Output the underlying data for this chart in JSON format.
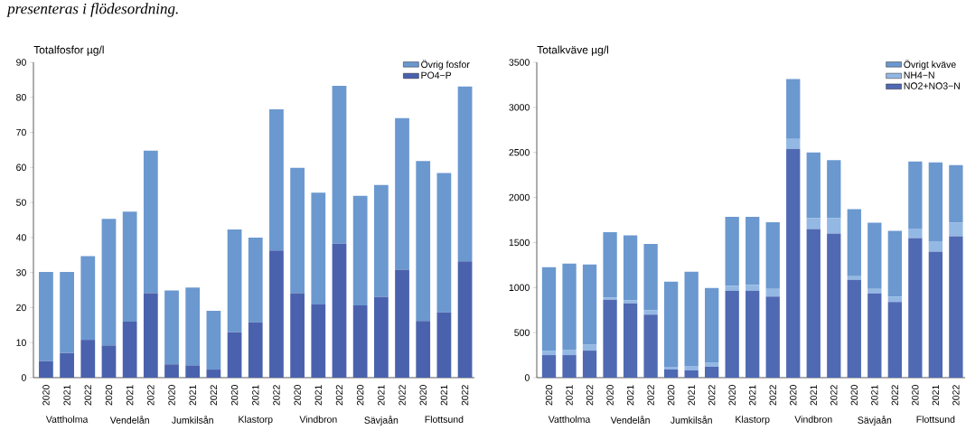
{
  "chart_data": [
    {
      "type": "bar",
      "stacked": true,
      "title": "presenteras i flödesordning.",
      "ylabel": "Totalfosfor µg/l",
      "categories": [
        "2020",
        "2021",
        "2022",
        "2020",
        "2021",
        "2022",
        "2020",
        "2021",
        "2022",
        "2020",
        "2021",
        "2022",
        "2020",
        "2021",
        "2022",
        "2020",
        "2021",
        "2022",
        "2020",
        "2021",
        "2022"
      ],
      "annotations": [
        "Vattholma",
        "Vendelån",
        "Jumkilsån",
        "Klastorp",
        "Vindbron",
        "Sävjaån",
        "Flottsund"
      ],
      "ylim": [
        0,
        90
      ],
      "yticks": [
        0,
        10,
        20,
        30,
        40,
        50,
        60,
        70,
        80,
        90
      ],
      "legend": "top right",
      "series": [
        {
          "name": "PO4−P",
          "color": "#4a62ad",
          "values": [
            4.7,
            7.0,
            10.8,
            9.2,
            16.0,
            24.1,
            3.8,
            3.5,
            2.3,
            13.0,
            15.8,
            36.3,
            24.1,
            20.9,
            38.2,
            20.6,
            23.0,
            30.8,
            16.2,
            18.6,
            33.2
          ]
        },
        {
          "name": "Övrig fosfor",
          "color": "#6b98cf",
          "values": [
            25.5,
            23.2,
            23.9,
            36.1,
            31.4,
            40.7,
            21.1,
            22.2,
            16.8,
            29.3,
            24.2,
            40.3,
            35.8,
            31.9,
            45.1,
            31.3,
            32.0,
            43.3,
            45.6,
            39.8,
            49.9
          ]
        }
      ]
    },
    {
      "type": "bar",
      "stacked": true,
      "ylabel": "Totalkväve µg/l",
      "categories": [
        "2020",
        "2021",
        "2022",
        "2020",
        "2021",
        "2022",
        "2020",
        "2021",
        "2022",
        "2020",
        "2021",
        "2022",
        "2020",
        "2021",
        "2022",
        "2020",
        "2021",
        "2022",
        "2020",
        "2021",
        "2022"
      ],
      "annotations": [
        "Vattholma",
        "Vendelån",
        "Jumkilsån",
        "Klastorp",
        "Vindbron",
        "Sävjaån",
        "Flottsund"
      ],
      "ylim": [
        0,
        3500
      ],
      "yticks": [
        0,
        500,
        1000,
        1500,
        2000,
        2500,
        3000,
        3500
      ],
      "legend": "top right",
      "series": [
        {
          "name": "NO2+NO3−N",
          "color": "#4f69b3",
          "values": [
            250,
            250,
            300,
            865,
            825,
            700,
            90,
            80,
            120,
            965,
            965,
            900,
            2540,
            1650,
            1600,
            1085,
            935,
            840,
            1550,
            1400,
            1570
          ]
        },
        {
          "name": "NH4−N",
          "color": "#93b8e3",
          "values": [
            50,
            60,
            70,
            25,
            35,
            50,
            30,
            50,
            50,
            55,
            65,
            85,
            110,
            120,
            170,
            40,
            50,
            60,
            105,
            115,
            150
          ]
        },
        {
          "name": "Övrigt kväve",
          "color": "#6b98cf",
          "values": [
            925,
            955,
            885,
            725,
            720,
            735,
            945,
            1045,
            825,
            765,
            755,
            740,
            665,
            730,
            645,
            745,
            735,
            730,
            745,
            875,
            640
          ]
        }
      ]
    }
  ]
}
